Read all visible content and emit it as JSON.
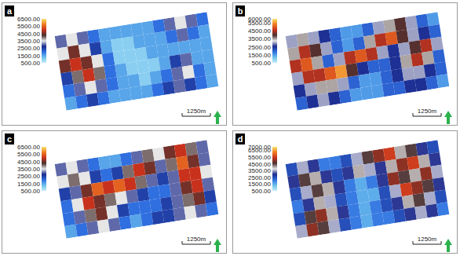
{
  "chart_data": [
    {
      "type": "heatmap",
      "label": "a",
      "colorbar_range": [
        500,
        6500
      ],
      "colorbar_ticks": [
        {
          "value": 6500,
          "label": "6500.00"
        },
        {
          "value": 5500,
          "label": "5500.00"
        },
        {
          "value": 4500,
          "label": "4500.00"
        },
        {
          "value": 3500,
          "label": "3500.00"
        },
        {
          "value": 2500,
          "label": "2500.00"
        },
        {
          "value": 1500,
          "label": "1500.00"
        },
        {
          "value": 500,
          "label": "500.00"
        }
      ],
      "scale_bar": "1250m",
      "cells": [
        [
          3000,
          3500,
          3000,
          2000,
          1500,
          1500,
          1500,
          1500,
          1500,
          2000,
          3000,
          3500,
          3000,
          2000
        ],
        [
          3500,
          4500,
          3500,
          2500,
          1500,
          1000,
          1000,
          1500,
          1500,
          1500,
          2000,
          3000,
          2000,
          1500
        ],
        [
          4500,
          5000,
          4500,
          3500,
          2000,
          1000,
          1000,
          1000,
          1500,
          1500,
          1500,
          1500,
          1500,
          1500
        ],
        [
          2500,
          4000,
          5000,
          4000,
          2000,
          1500,
          1000,
          1000,
          1000,
          1500,
          2500,
          3000,
          1500,
          1500
        ],
        [
          2000,
          3000,
          3500,
          3000,
          2000,
          1500,
          1500,
          1000,
          1500,
          2000,
          3000,
          3500,
          2000,
          1500
        ],
        [
          1500,
          2000,
          2500,
          2000,
          1500,
          1500,
          1500,
          1500,
          2000,
          2500,
          3000,
          2500,
          2000,
          1500
        ]
      ]
    },
    {
      "type": "heatmap",
      "label": "b",
      "colorbar_range": [
        500,
        6000
      ],
      "colorbar_ticks": [
        {
          "value": 6000,
          "label": "6000.00"
        },
        {
          "value": 5500,
          "label": "5500.00"
        },
        {
          "value": 4500,
          "label": "4500.00"
        },
        {
          "value": 3500,
          "label": "3500.00"
        },
        {
          "value": 2500,
          "label": "2500.00"
        },
        {
          "value": 1500,
          "label": "1500.00"
        },
        {
          "value": 500,
          "label": "500.00"
        }
      ],
      "scale_bar": "1250m",
      "cells": [
        [
          3000,
          3500,
          3000,
          2500,
          2000,
          1500,
          1500,
          2000,
          3000,
          3500,
          4000,
          3000,
          2000,
          1500
        ],
        [
          3500,
          4500,
          4000,
          3000,
          2000,
          1500,
          2000,
          3500,
          4500,
          5000,
          4000,
          3000,
          2500,
          2000
        ],
        [
          4500,
          5000,
          3500,
          2000,
          3000,
          4500,
          5000,
          4500,
          3000,
          2500,
          3000,
          4000,
          4500,
          3000
        ],
        [
          3000,
          4500,
          4500,
          5000,
          5500,
          4000,
          2500,
          2000,
          2000,
          2500,
          3500,
          4500,
          3500,
          2000
        ],
        [
          2500,
          3000,
          3500,
          3500,
          3000,
          2000,
          1500,
          1500,
          2000,
          2500,
          3000,
          3000,
          2500,
          2000
        ],
        [
          2000,
          2500,
          3000,
          2500,
          2000,
          1500,
          1500,
          1500,
          2000,
          2000,
          2500,
          2500,
          2000,
          1500
        ]
      ]
    },
    {
      "type": "heatmap",
      "label": "c",
      "colorbar_range": [
        500,
        6500
      ],
      "colorbar_ticks": [
        {
          "value": 6500,
          "label": "6500.00"
        },
        {
          "value": 5500,
          "label": "5500.00"
        },
        {
          "value": 4500,
          "label": "4500.00"
        },
        {
          "value": 3500,
          "label": "3500.00"
        },
        {
          "value": 2500,
          "label": "2500.00"
        },
        {
          "value": 1500,
          "label": "1500.00"
        },
        {
          "value": 500,
          "label": "500.00"
        }
      ],
      "scale_bar": "1250m",
      "cells": [
        [
          3000,
          3500,
          3000,
          2000,
          1500,
          1500,
          2000,
          3000,
          4000,
          3500,
          4500,
          5000,
          4000,
          3000
        ],
        [
          3500,
          4000,
          3500,
          2500,
          2000,
          2500,
          4000,
          5000,
          4500,
          3000,
          4000,
          5500,
          4500,
          3000
        ],
        [
          2500,
          3000,
          4500,
          5500,
          5000,
          5500,
          5000,
          4000,
          3000,
          2500,
          3000,
          5000,
          5000,
          3500
        ],
        [
          2000,
          3500,
          5000,
          4500,
          4000,
          3500,
          3000,
          2500,
          2000,
          2000,
          3000,
          4500,
          5000,
          3000
        ],
        [
          2000,
          3000,
          4000,
          4500,
          3500,
          2500,
          2000,
          2000,
          2000,
          2500,
          3000,
          4000,
          4500,
          2500
        ],
        [
          1500,
          2000,
          3000,
          3500,
          3000,
          2000,
          1500,
          2000,
          2500,
          2500,
          3000,
          3500,
          3000,
          2000
        ]
      ]
    },
    {
      "type": "heatmap",
      "label": "d",
      "colorbar_range": [
        500,
        7000
      ],
      "colorbar_ticks": [
        {
          "value": 7000,
          "label": "7000.00"
        },
        {
          "value": 6500,
          "label": "6500.00"
        },
        {
          "value": 5500,
          "label": "5500.00"
        },
        {
          "value": 4500,
          "label": "4500.00"
        },
        {
          "value": 3500,
          "label": "3500.00"
        },
        {
          "value": 2500,
          "label": "2500.00"
        },
        {
          "value": 1500,
          "label": "1500.00"
        },
        {
          "value": 500,
          "label": "500.00"
        }
      ],
      "scale_bar": "1250m",
      "cells": [
        [
          2500,
          3500,
          3000,
          2000,
          2000,
          2500,
          3500,
          4500,
          5000,
          5500,
          4000,
          4500,
          3000,
          2500
        ],
        [
          3000,
          4500,
          4000,
          3000,
          2500,
          3000,
          4000,
          3500,
          3000,
          4000,
          5000,
          5500,
          4000,
          3000
        ],
        [
          2500,
          3500,
          4500,
          4000,
          3000,
          2000,
          1500,
          2000,
          3000,
          5000,
          4500,
          4000,
          5000,
          3500
        ],
        [
          2000,
          3000,
          4000,
          3500,
          2500,
          2000,
          1500,
          1500,
          2500,
          3500,
          5500,
          5000,
          4500,
          3000
        ],
        [
          2500,
          4500,
          5000,
          4000,
          3000,
          2000,
          1500,
          2000,
          2500,
          3000,
          4000,
          4500,
          3500,
          2500
        ],
        [
          3500,
          5000,
          4500,
          3500,
          2500,
          2000,
          1500,
          2000,
          2000,
          2500,
          3000,
          3500,
          3000,
          2000
        ]
      ]
    }
  ]
}
